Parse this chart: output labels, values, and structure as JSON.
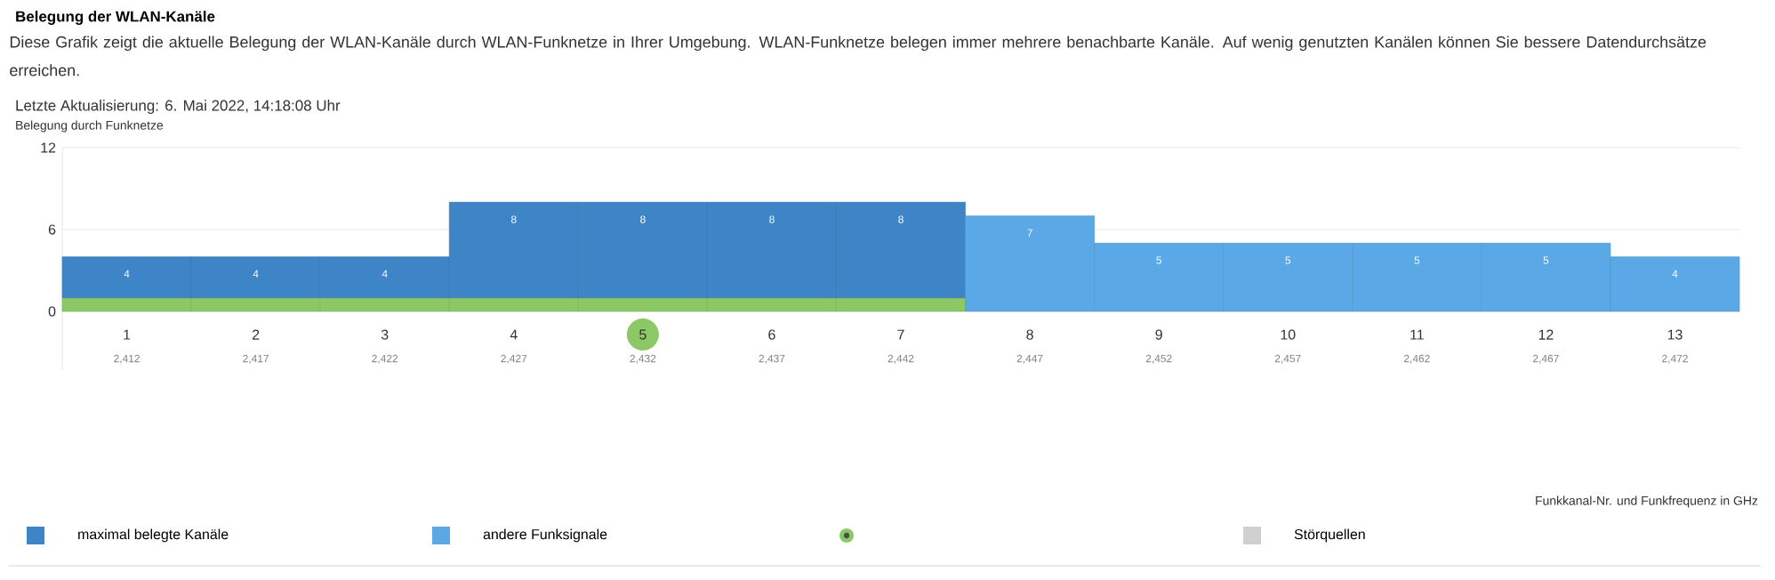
{
  "chart_data": {
    "type": "bar",
    "stacked": true,
    "title": "Belegung der WLAN-Kanäle",
    "subtitle": "Diese Grafik zeigt die aktuelle Belegung der WLAN-Kanäle durch WLAN-Funknetze in Ihrer Umgebung. WLAN-Funknetze belegen immer mehrere benachbarte Kanäle. Auf wenig genutzten Kanälen können Sie bessere Datendurchsätze erreichen.",
    "ylabel": "Belegung durch Funknetze",
    "categories": [
      "1",
      "2",
      "3",
      "4",
      "5",
      "6",
      "7",
      "8",
      "9",
      "10",
      "11",
      "12",
      "13"
    ],
    "ylim": [
      -4.3,
      12
    ],
    "yticks": [
      0,
      6,
      12
    ],
    "grid": true,
    "legend": "bottom",
    "annotations": [
      "Letzte Aktualisierung: 6. Mai 2022, 14:18:08 Uhr",
      "Funkkanal-Nr. und Funkfrequenz in GHz",
      "2,412",
      "2,417",
      "2,422",
      "2,427",
      "2,432",
      "2,437",
      "2,442",
      "2,447",
      "2,452",
      "2,457",
      "2,462",
      "2,467",
      "2,472"
    ],
    "totals": [
      "4",
      "4",
      "4",
      "8",
      "8",
      "8",
      "8",
      "7",
      "5",
      "5",
      "5",
      "5",
      "4"
    ],
    "series": [
      {
        "color": "#8cc866",
        "values": [
          1,
          1,
          1,
          1,
          1,
          1,
          1,
          null,
          null,
          null,
          null,
          null,
          null
        ]
      },
      {
        "name": "maximal belegte Kanäle",
        "color": "#3d85c6",
        "values": [
          3,
          3,
          3,
          7,
          7,
          7,
          7,
          null,
          null,
          null,
          null,
          null,
          null
        ]
      },
      {
        "name": "andere Funksignale",
        "color": "#5aa8e6",
        "values": [
          null,
          null,
          null,
          null,
          null,
          null,
          null,
          7,
          5,
          5,
          5,
          5,
          4
        ]
      },
      {
        "type": "scatter",
        "color": "#8cc866",
        "marker": "circle",
        "x": [
          "5"
        ],
        "values": [
          -1.7
        ]
      },
      {
        "name": "Störquellen",
        "color": "#d0d0d0",
        "values": [
          null,
          null,
          null,
          null,
          null,
          null,
          null,
          null,
          null,
          null,
          null,
          null,
          null
        ]
      }
    ]
  }
}
